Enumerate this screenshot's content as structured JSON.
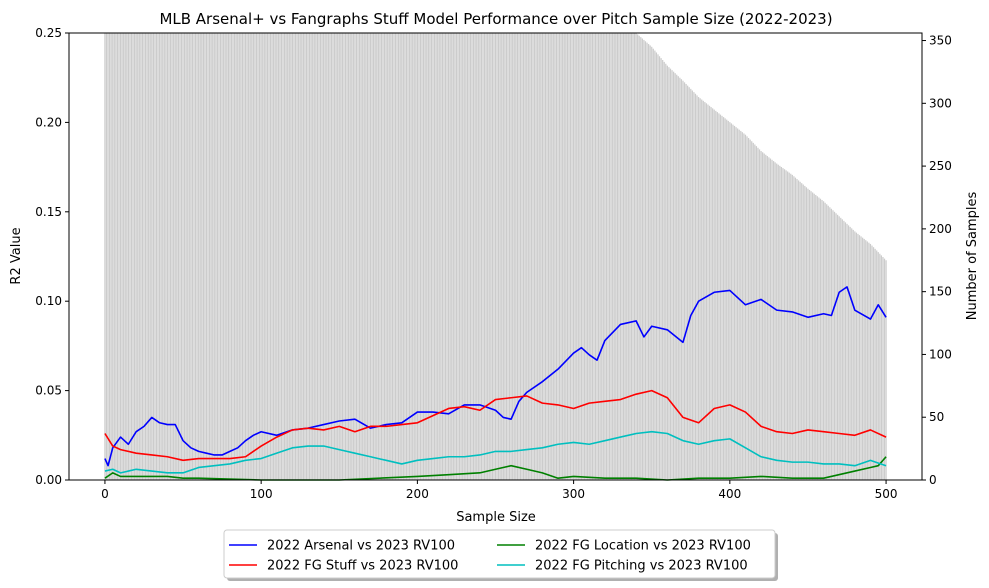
{
  "chart_data": {
    "type": "line",
    "title": "MLB Arsenal+ vs Fangraphs Stuff Model Performance over Pitch Sample Size (2022-2023)",
    "xlabel": "Sample Size",
    "ylabel": "R2 Value",
    "y2label": "Number of Samples",
    "xlim": [
      -23,
      523
    ],
    "ylim": [
      0,
      0.25
    ],
    "y2lim": [
      0,
      356
    ],
    "xticks": [
      "0",
      "100",
      "200",
      "300",
      "400",
      "500"
    ],
    "xtick_values": [
      0,
      100,
      200,
      300,
      400,
      500
    ],
    "yticks": [
      "0.00",
      "0.05",
      "0.10",
      "0.15",
      "0.20",
      "0.25"
    ],
    "ytick_values": [
      0,
      0.05,
      0.1,
      0.15,
      0.2,
      0.25
    ],
    "y2ticks": [
      "0",
      "50",
      "100",
      "150",
      "200",
      "250",
      "300",
      "350"
    ],
    "y2tick_values": [
      0,
      50,
      100,
      150,
      200,
      250,
      300,
      350
    ],
    "legend_position": "below-center",
    "grid": false,
    "bars": {
      "name": "Number of Samples",
      "color": "#cccccc",
      "x": [
        0,
        340,
        350,
        360,
        370,
        380,
        390,
        400,
        410,
        420,
        430,
        440,
        450,
        460,
        470,
        480,
        490,
        500
      ],
      "values": [
        356,
        356,
        345,
        330,
        318,
        305,
        295,
        285,
        275,
        262,
        252,
        243,
        232,
        222,
        210,
        198,
        188,
        175
      ]
    },
    "series": [
      {
        "name": "2022 Arsenal vs 2023 RV100",
        "color": "#0000ff",
        "x": [
          0,
          2,
          5,
          10,
          15,
          20,
          25,
          30,
          35,
          40,
          45,
          50,
          55,
          60,
          65,
          70,
          75,
          80,
          85,
          90,
          95,
          100,
          110,
          120,
          130,
          140,
          150,
          160,
          170,
          180,
          190,
          200,
          210,
          220,
          230,
          240,
          250,
          255,
          260,
          265,
          270,
          280,
          290,
          300,
          305,
          310,
          315,
          320,
          330,
          340,
          345,
          350,
          360,
          370,
          375,
          380,
          390,
          400,
          410,
          420,
          430,
          440,
          450,
          460,
          465,
          470,
          475,
          480,
          490,
          495,
          500
        ],
        "values": [
          0.012,
          0.008,
          0.018,
          0.024,
          0.02,
          0.027,
          0.03,
          0.035,
          0.032,
          0.031,
          0.031,
          0.022,
          0.018,
          0.016,
          0.015,
          0.014,
          0.014,
          0.016,
          0.018,
          0.022,
          0.025,
          0.027,
          0.025,
          0.028,
          0.029,
          0.031,
          0.033,
          0.034,
          0.029,
          0.031,
          0.032,
          0.038,
          0.038,
          0.037,
          0.042,
          0.042,
          0.039,
          0.035,
          0.034,
          0.044,
          0.049,
          0.055,
          0.062,
          0.071,
          0.074,
          0.07,
          0.067,
          0.078,
          0.087,
          0.089,
          0.08,
          0.086,
          0.084,
          0.077,
          0.092,
          0.1,
          0.105,
          0.106,
          0.098,
          0.101,
          0.095,
          0.094,
          0.091,
          0.093,
          0.092,
          0.105,
          0.108,
          0.095,
          0.09,
          0.098,
          0.091
        ]
      },
      {
        "name": "2022 FG Stuff vs 2023 RV100",
        "color": "#ff0000",
        "x": [
          0,
          5,
          10,
          20,
          30,
          40,
          50,
          60,
          70,
          80,
          90,
          100,
          110,
          120,
          130,
          140,
          150,
          160,
          170,
          180,
          190,
          200,
          210,
          220,
          230,
          240,
          250,
          260,
          270,
          280,
          290,
          300,
          310,
          320,
          330,
          340,
          350,
          360,
          370,
          380,
          390,
          400,
          410,
          420,
          430,
          440,
          450,
          460,
          470,
          480,
          490,
          500
        ],
        "values": [
          0.026,
          0.019,
          0.017,
          0.015,
          0.014,
          0.013,
          0.011,
          0.012,
          0.012,
          0.012,
          0.013,
          0.019,
          0.024,
          0.028,
          0.029,
          0.028,
          0.03,
          0.027,
          0.03,
          0.03,
          0.031,
          0.032,
          0.036,
          0.04,
          0.041,
          0.039,
          0.045,
          0.046,
          0.047,
          0.043,
          0.042,
          0.04,
          0.043,
          0.044,
          0.045,
          0.048,
          0.05,
          0.046,
          0.035,
          0.032,
          0.04,
          0.042,
          0.038,
          0.03,
          0.027,
          0.026,
          0.028,
          0.027,
          0.026,
          0.025,
          0.028,
          0.024
        ]
      },
      {
        "name": "2022 FG Location vs 2023 RV100",
        "color": "#008000",
        "x": [
          0,
          5,
          10,
          20,
          30,
          40,
          50,
          60,
          100,
          150,
          200,
          220,
          240,
          250,
          260,
          270,
          280,
          290,
          300,
          320,
          340,
          360,
          380,
          400,
          420,
          440,
          460,
          480,
          490,
          495,
          500
        ],
        "values": [
          0.001,
          0.004,
          0.002,
          0.002,
          0.002,
          0.002,
          0.001,
          0.001,
          0.0,
          0.0,
          0.002,
          0.003,
          0.004,
          0.006,
          0.008,
          0.006,
          0.004,
          0.001,
          0.002,
          0.001,
          0.001,
          0.0,
          0.001,
          0.001,
          0.002,
          0.001,
          0.001,
          0.005,
          0.007,
          0.008,
          0.013
        ]
      },
      {
        "name": "2022 FG Pitching vs 2023 RV100",
        "color": "#00bfbf",
        "x": [
          0,
          5,
          10,
          20,
          30,
          40,
          50,
          60,
          70,
          80,
          90,
          100,
          110,
          120,
          130,
          140,
          150,
          160,
          170,
          180,
          190,
          200,
          210,
          220,
          230,
          240,
          250,
          260,
          270,
          280,
          290,
          300,
          310,
          320,
          330,
          340,
          350,
          360,
          370,
          380,
          390,
          400,
          410,
          420,
          430,
          440,
          450,
          460,
          470,
          480,
          490,
          500
        ],
        "values": [
          0.005,
          0.006,
          0.004,
          0.006,
          0.005,
          0.004,
          0.004,
          0.007,
          0.008,
          0.009,
          0.011,
          0.012,
          0.015,
          0.018,
          0.019,
          0.019,
          0.017,
          0.015,
          0.013,
          0.011,
          0.009,
          0.011,
          0.012,
          0.013,
          0.013,
          0.014,
          0.016,
          0.016,
          0.017,
          0.018,
          0.02,
          0.021,
          0.02,
          0.022,
          0.024,
          0.026,
          0.027,
          0.026,
          0.022,
          0.02,
          0.022,
          0.023,
          0.018,
          0.013,
          0.011,
          0.01,
          0.01,
          0.009,
          0.009,
          0.008,
          0.011,
          0.008
        ]
      }
    ]
  }
}
